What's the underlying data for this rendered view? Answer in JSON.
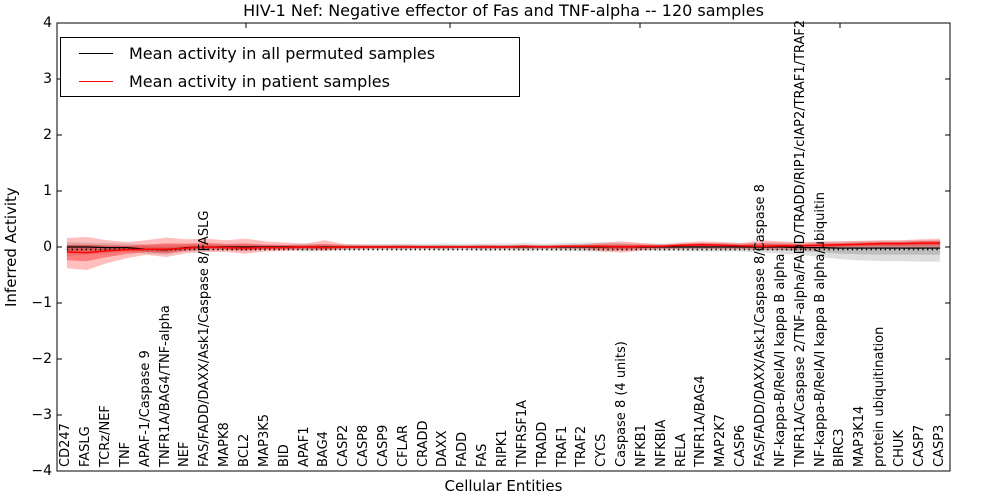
{
  "title": "HIV-1 Nef: Negative effector of Fas and TNF-alpha -- 120 samples",
  "xlabel": "Cellular Entities",
  "ylabel": "Inferred Activity",
  "legend": {
    "entries": [
      {
        "label": "Mean activity in all permuted samples",
        "color": "#000000"
      },
      {
        "label": "Mean activity in patient samples",
        "color": "#ff0000"
      }
    ]
  },
  "chart_data": {
    "type": "line",
    "title": "HIV-1 Nef: Negative effector of Fas and TNF-alpha -- 120 samples",
    "xlabel": "Cellular Entities",
    "ylabel": "Inferred Activity",
    "ylim": [
      -4,
      4
    ],
    "yticks": [
      4,
      3,
      2,
      1,
      0,
      -1,
      -2,
      -3,
      -4
    ],
    "ytick_labels": [
      "4",
      "3",
      "2",
      "1",
      "0",
      "−1",
      "−2",
      "−3",
      "−4"
    ],
    "grid": false,
    "legend_position": "upper left",
    "categories": [
      "CD247",
      "FASLG",
      "TCRz/NEF",
      "TNF",
      "APAF-1/Caspase 9",
      "TNFR1A/BAG4/TNF-alpha",
      "NEF",
      "FAS/FADD/DAXX/Ask1/Caspase 8/FASLG",
      "MAPK8",
      "BCL2",
      "MAP3K5",
      "BID",
      "APAF1",
      "BAG4",
      "CASP2",
      "CASP8",
      "CASP9",
      "CFLAR",
      "CRADD",
      "DAXX",
      "FADD",
      "FAS",
      "RIPK1",
      "TNFRSF1A",
      "TRADD",
      "TRAF1",
      "TRAF2",
      "CYCS",
      "Caspase 8 (4 units)",
      "NFKB1",
      "NFKBIA",
      "RELA",
      "TNFR1A/BAG4",
      "MAP2K7",
      "CASP6",
      "FAS/FADD/DAXX/Ask1/Caspase 8/Caspase 8",
      "NF-kappa-B/RelA/I kappa B alpha",
      "TNFR1A/Caspase 2/TNF-alpha/FADD/TRADD/RIP1/cIAP2/TRAF1/TRAF2",
      "NF-kappa-B/RelA/I kappa B alpha/ubiquitin",
      "BIRC3",
      "MAP3K14",
      "protein ubiquitination",
      "CHUK",
      "CASP7",
      "CASP3"
    ],
    "series": [
      {
        "name": "Mean activity in all permuted samples",
        "color": "#000000",
        "values": [
          0,
          0,
          -0.01,
          -0.01,
          -0.04,
          -0.05,
          -0.01,
          0,
          0,
          0,
          0,
          0,
          0,
          0,
          0,
          0,
          0,
          0,
          0,
          0,
          0,
          0,
          0,
          0,
          0,
          0,
          0,
          0,
          0,
          0,
          0,
          0,
          0,
          0,
          0,
          0,
          0,
          -0.01,
          -0.01,
          -0.02,
          -0.02,
          -0.02,
          -0.02,
          -0.02,
          -0.02
        ]
      },
      {
        "name": "Mean activity in patient samples",
        "color": "#ff0000",
        "values": [
          -0.09,
          -0.1,
          -0.07,
          -0.05,
          -0.04,
          -0.04,
          -0.02,
          0,
          -0.01,
          -0.02,
          -0.01,
          -0.01,
          0,
          -0.01,
          0,
          0,
          0,
          0,
          0,
          0,
          0,
          0,
          0,
          0.01,
          0,
          0.01,
          0.01,
          0.01,
          0,
          0.01,
          0.01,
          0.03,
          0.04,
          0.03,
          0.02,
          0.01,
          0.02,
          0.02,
          0.03,
          0.04,
          0.05,
          0.06,
          0.06,
          0.07,
          0.07
        ]
      }
    ],
    "bands": [
      {
        "name": "permuted-samples-std-band",
        "series": 0,
        "color": "rgba(0,0,0,0.13)",
        "inner_color": "rgba(0,0,0,0.15)",
        "upper": [
          0.09,
          0.08,
          0.07,
          0.06,
          0.05,
          0.04,
          0.05,
          0.05,
          0.05,
          0.05,
          0.04,
          0.04,
          0.06,
          0.05,
          0.05,
          0.05,
          0.05,
          0.06,
          0.05,
          0.06,
          0.05,
          0.06,
          0.06,
          0.07,
          0.06,
          0.07,
          0.08,
          0.08,
          0.07,
          0.06,
          0.06,
          0.06,
          0.07,
          0.07,
          0.07,
          0.08,
          0.08,
          0.08,
          0.09,
          0.1,
          0.1,
          0.11,
          0.11,
          0.12,
          0.12
        ],
        "lower": [
          -0.16,
          -0.14,
          -0.11,
          -0.09,
          -0.12,
          -0.13,
          -0.08,
          -0.06,
          -0.06,
          -0.06,
          -0.05,
          -0.05,
          -0.08,
          -0.06,
          -0.06,
          -0.05,
          -0.05,
          -0.06,
          -0.05,
          -0.06,
          -0.05,
          -0.07,
          -0.06,
          -0.07,
          -0.06,
          -0.07,
          -0.08,
          -0.08,
          -0.07,
          -0.06,
          -0.07,
          -0.07,
          -0.08,
          -0.08,
          -0.08,
          -0.1,
          -0.12,
          -0.14,
          -0.18,
          -0.22,
          -0.24,
          -0.25,
          -0.25,
          -0.26,
          -0.26
        ]
      },
      {
        "name": "patient-samples-std-band",
        "series": 1,
        "color": "rgba(255,0,0,0.25)",
        "inner_color": "rgba(255,0,0,0.35)",
        "upper": [
          0.16,
          0.18,
          0.12,
          0.09,
          0.12,
          0.17,
          0.14,
          0.15,
          0.12,
          0.15,
          0.1,
          0.08,
          0.06,
          0.12,
          0.05,
          0.04,
          0.04,
          0.04,
          0.03,
          0.03,
          0.03,
          0.04,
          0.03,
          0.04,
          0.03,
          0.04,
          0.05,
          0.08,
          0.1,
          0.07,
          0.05,
          0.08,
          0.1,
          0.09,
          0.07,
          0.12,
          0.1,
          0.08,
          0.1,
          0.1,
          0.11,
          0.12,
          0.12,
          0.14,
          0.15
        ],
        "lower": [
          -0.38,
          -0.41,
          -0.29,
          -0.2,
          -0.14,
          -0.18,
          -0.11,
          -0.09,
          -0.09,
          -0.12,
          -0.08,
          -0.07,
          -0.05,
          -0.07,
          -0.04,
          -0.04,
          -0.03,
          -0.03,
          -0.03,
          -0.03,
          -0.02,
          -0.03,
          -0.03,
          -0.03,
          -0.03,
          -0.03,
          -0.04,
          -0.08,
          -0.1,
          -0.06,
          -0.04,
          -0.03,
          -0.03,
          -0.04,
          -0.04,
          -0.05,
          -0.05,
          -0.05,
          -0.04,
          -0.03,
          -0.02,
          -0.02,
          -0.02,
          -0.02,
          -0.02
        ]
      }
    ]
  }
}
